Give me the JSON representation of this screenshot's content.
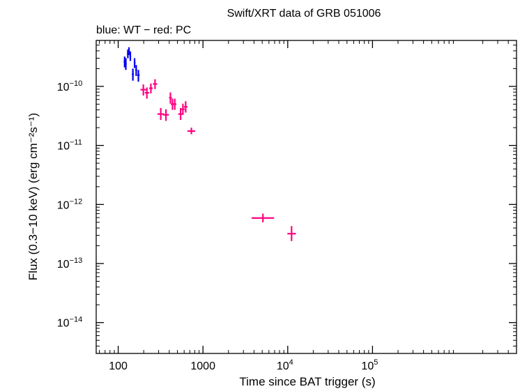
{
  "chart_data": {
    "type": "scatter",
    "title": "Swift/XRT data of GRB 051006",
    "subtitle": "blue: WT − red: PC",
    "xlabel": "Time since BAT trigger (s)",
    "ylabel": "Flux (0.3−10 keV) (erg cm⁻²s⁻¹)",
    "x_scale": "log",
    "y_scale": "log",
    "xlim": [
      55,
      5000000
    ],
    "ylim": [
      3e-15,
      6e-10
    ],
    "x_ticks": [
      {
        "value": 100,
        "label": "100"
      },
      {
        "value": 1000,
        "label": "1000"
      },
      {
        "value": 10000,
        "base": "10",
        "exp": "4"
      },
      {
        "value": 100000,
        "base": "10",
        "exp": "5"
      }
    ],
    "y_ticks": [
      {
        "value": 1e-10,
        "base": "10",
        "exp": "−10"
      },
      {
        "value": 1e-11,
        "base": "10",
        "exp": "−11"
      },
      {
        "value": 1e-12,
        "base": "10",
        "exp": "−12"
      },
      {
        "value": 1e-13,
        "base": "10",
        "exp": "−13"
      },
      {
        "value": 1e-14,
        "base": "10",
        "exp": "−14"
      }
    ],
    "grid": false,
    "series": [
      {
        "name": "WT",
        "color": "#0000ee",
        "points": [
          {
            "x": 119,
            "xlo": 116,
            "xhi": 122,
            "y": 2.6e-10,
            "ylo": 2.1e-10,
            "yhi": 3.2e-10
          },
          {
            "x": 123,
            "xlo": 121,
            "xhi": 126,
            "y": 2.4e-10,
            "ylo": 1.9e-10,
            "yhi": 3e-10
          },
          {
            "x": 130,
            "xlo": 127,
            "xhi": 133,
            "y": 3.6e-10,
            "ylo": 3e-10,
            "yhi": 4.2e-10
          },
          {
            "x": 134,
            "xlo": 132,
            "xhi": 137,
            "y": 4e-10,
            "ylo": 3.4e-10,
            "yhi": 4.6e-10
          },
          {
            "x": 139,
            "xlo": 136,
            "xhi": 142,
            "y": 3.3e-10,
            "ylo": 2.7e-10,
            "yhi": 3.9e-10
          },
          {
            "x": 149,
            "xlo": 145,
            "xhi": 153,
            "y": 1.6e-10,
            "ylo": 1.25e-10,
            "yhi": 2e-10
          },
          {
            "x": 156,
            "xlo": 153,
            "xhi": 160,
            "y": 2.5e-10,
            "ylo": 2.05e-10,
            "yhi": 3e-10
          },
          {
            "x": 163,
            "xlo": 159,
            "xhi": 167,
            "y": 1.9e-10,
            "ylo": 1.5e-10,
            "yhi": 2.3e-10
          },
          {
            "x": 173,
            "xlo": 168,
            "xhi": 179,
            "y": 1.55e-10,
            "ylo": 1.2e-10,
            "yhi": 1.9e-10
          }
        ]
      },
      {
        "name": "PC",
        "color": "#ff0080",
        "points": [
          {
            "x": 198,
            "xlo": 183,
            "xhi": 213,
            "y": 8.8e-11,
            "ylo": 7e-11,
            "yhi": 1.08e-10
          },
          {
            "x": 218,
            "xlo": 206,
            "xhi": 232,
            "y": 7.8e-11,
            "ylo": 6.2e-11,
            "yhi": 9.6e-11
          },
          {
            "x": 243,
            "xlo": 232,
            "xhi": 255,
            "y": 9.3e-11,
            "ylo": 7.6e-11,
            "yhi": 1.12e-10
          },
          {
            "x": 272,
            "xlo": 257,
            "xhi": 288,
            "y": 1.1e-10,
            "ylo": 9e-11,
            "yhi": 1.32e-10
          },
          {
            "x": 318,
            "xlo": 290,
            "xhi": 348,
            "y": 3.4e-11,
            "ylo": 2.7e-11,
            "yhi": 4.3e-11
          },
          {
            "x": 366,
            "xlo": 338,
            "xhi": 396,
            "y": 3.3e-11,
            "ylo": 2.6e-11,
            "yhi": 4.1e-11
          },
          {
            "x": 413,
            "xlo": 398,
            "xhi": 430,
            "y": 6.4e-11,
            "ylo": 5.1e-11,
            "yhi": 7.9e-11
          },
          {
            "x": 437,
            "xlo": 417,
            "xhi": 458,
            "y": 5e-11,
            "ylo": 4e-11,
            "yhi": 6.2e-11
          },
          {
            "x": 465,
            "xlo": 446,
            "xhi": 486,
            "y": 5e-11,
            "ylo": 4e-11,
            "yhi": 6.2e-11
          },
          {
            "x": 545,
            "xlo": 510,
            "xhi": 584,
            "y": 3.4e-11,
            "ylo": 2.7e-11,
            "yhi": 4.3e-11
          },
          {
            "x": 580,
            "xlo": 555,
            "xhi": 607,
            "y": 4.1e-11,
            "ylo": 3.3e-11,
            "yhi": 5.1e-11
          },
          {
            "x": 625,
            "xlo": 596,
            "xhi": 656,
            "y": 4.5e-11,
            "ylo": 3.6e-11,
            "yhi": 5.6e-11
          },
          {
            "x": 730,
            "xlo": 655,
            "xhi": 808,
            "y": 1.75e-11,
            "ylo": 1.55e-11,
            "yhi": 2e-11
          },
          {
            "x": 5100,
            "xlo": 3750,
            "xhi": 6900,
            "y": 5.9e-13,
            "ylo": 5e-13,
            "yhi": 7e-13
          },
          {
            "x": 11100,
            "xlo": 9900,
            "xhi": 12500,
            "y": 3.2e-13,
            "ylo": 2.4e-13,
            "yhi": 4.3e-13
          }
        ]
      }
    ]
  }
}
